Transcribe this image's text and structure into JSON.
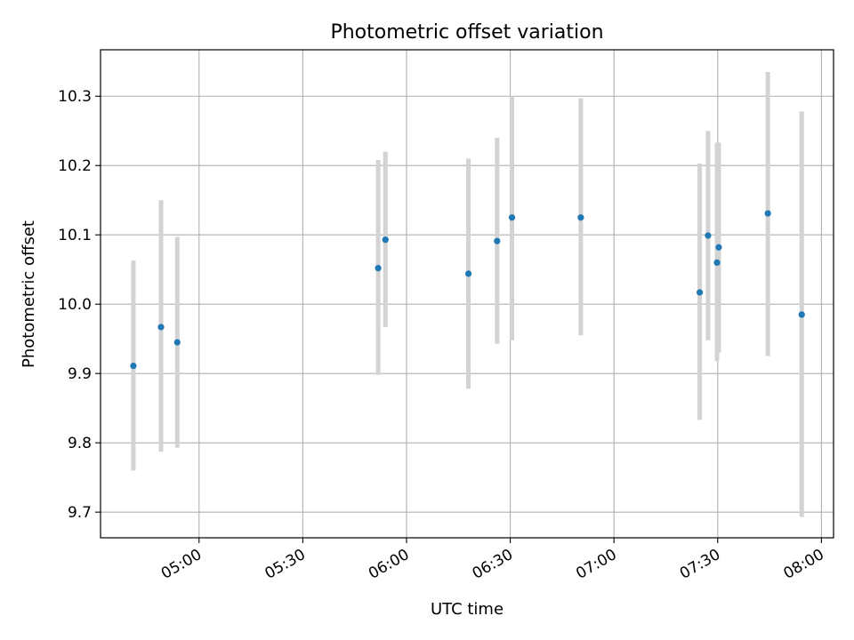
{
  "chart_data": {
    "type": "scatter",
    "title": "Photometric offset variation",
    "xlabel": "UTC time",
    "ylabel": "Photometric offset",
    "grid": true,
    "xlim": [
      "04:31.5",
      "08:03.5"
    ],
    "ylim": [
      9.663,
      10.367
    ],
    "x_ticks": [
      "05:00",
      "05:30",
      "06:00",
      "06:30",
      "07:00",
      "07:30",
      "08:00"
    ],
    "y_ticks": [
      9.7,
      9.8,
      9.9,
      10.0,
      10.1,
      10.2,
      10.3
    ],
    "y_tick_labels": [
      "9.7",
      "9.8",
      "9.9",
      "10.0",
      "10.1",
      "10.2",
      "10.3"
    ],
    "colors": {
      "point": "#1f77b4",
      "errorbar": "#d3d3d3",
      "grid": "#b0b0b0"
    },
    "points": [
      {
        "x": "04:41.0",
        "y": 9.911,
        "ylow": 9.76,
        "yhigh": 10.063
      },
      {
        "x": "04:49.0",
        "y": 9.967,
        "ylow": 9.787,
        "yhigh": 10.15
      },
      {
        "x": "04:53.7",
        "y": 9.945,
        "ylow": 9.793,
        "yhigh": 10.097
      },
      {
        "x": "05:51.8",
        "y": 10.052,
        "ylow": 9.898,
        "yhigh": 10.208
      },
      {
        "x": "05:53.9",
        "y": 10.093,
        "ylow": 9.967,
        "yhigh": 10.22
      },
      {
        "x": "06:17.9",
        "y": 10.044,
        "ylow": 9.878,
        "yhigh": 10.21
      },
      {
        "x": "06:26.2",
        "y": 10.091,
        "ylow": 9.943,
        "yhigh": 10.24
      },
      {
        "x": "06:30.5",
        "y": 10.125,
        "ylow": 9.948,
        "yhigh": 10.3
      },
      {
        "x": "06:50.4",
        "y": 10.125,
        "ylow": 9.955,
        "yhigh": 10.297
      },
      {
        "x": "07:24.8",
        "y": 10.017,
        "ylow": 9.833,
        "yhigh": 10.203
      },
      {
        "x": "07:27.2",
        "y": 10.099,
        "ylow": 9.948,
        "yhigh": 10.25
      },
      {
        "x": "07:29.8",
        "y": 10.06,
        "ylow": 9.918,
        "yhigh": 10.233
      },
      {
        "x": "07:30.3",
        "y": 10.082,
        "ylow": 9.93,
        "yhigh": 10.233
      },
      {
        "x": "07:44.5",
        "y": 10.131,
        "ylow": 9.925,
        "yhigh": 10.335
      },
      {
        "x": "07:54.3",
        "y": 9.985,
        "ylow": 9.693,
        "yhigh": 10.278
      }
    ]
  }
}
